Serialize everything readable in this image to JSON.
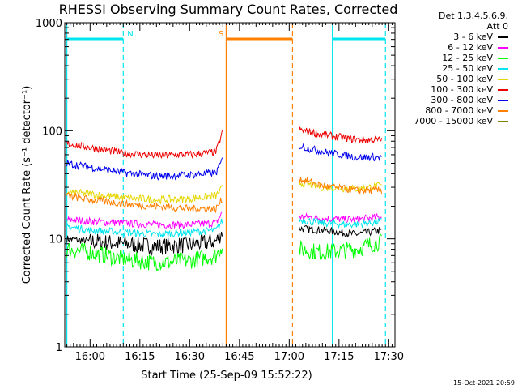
{
  "chart_data": {
    "type": "line",
    "title": "RHESSI Observing Summary Count Rates, Corrected",
    "xlabel": "Start Time (25-Sep-09 15:52:22)",
    "ylabel": "Corrected Count Rate (s⁻¹ detector⁻¹)",
    "y_scale": "log",
    "ylim": [
      1,
      1000
    ],
    "y_ticks": [
      "1",
      "10",
      "100",
      "1000"
    ],
    "x_ticks": [
      "16:00",
      "16:15",
      "16:30",
      "16:45",
      "17:00",
      "17:15",
      "17:30"
    ],
    "detectors_label": "Det 1,3,4,5,6,9,",
    "attenuator_label": "Att 0",
    "footer_date": "15-Oct-2021 20:59",
    "markers": [
      {
        "label": "N",
        "kind": "night",
        "start": "15:53",
        "end": "16:10",
        "color": "#00e5ee"
      },
      {
        "label": "S",
        "kind": "saa",
        "start": "16:41",
        "end": "17:01",
        "color": "#ff8000"
      },
      {
        "label": "",
        "kind": "night",
        "start": "17:13",
        "end": "17:29",
        "color": "#00e5ee"
      }
    ],
    "series": [
      {
        "name": "3 - 6 keV",
        "color": "#000000",
        "segments": [
          {
            "times": [
              "15:53",
              "16:00",
              "16:10",
              "16:20",
              "16:30",
              "16:38",
              "16:40"
            ],
            "values": [
              10,
              9.5,
              9,
              8.5,
              8.8,
              9.5,
              12
            ]
          },
          {
            "times": [
              "17:03",
              "17:10",
              "17:20",
              "17:28"
            ],
            "values": [
              12.5,
              12,
              11,
              12
            ]
          }
        ]
      },
      {
        "name": "6 - 12 keV",
        "color": "#ff00ff",
        "segments": [
          {
            "times": [
              "15:53",
              "16:00",
              "16:10",
              "16:20",
              "16:30",
              "16:38",
              "16:40"
            ],
            "values": [
              15,
              14.5,
              14,
              13.5,
              13.5,
              14,
              18
            ]
          },
          {
            "times": [
              "17:03",
              "17:10",
              "17:20",
              "17:28"
            ],
            "values": [
              16,
              15.5,
              15,
              16
            ]
          }
        ]
      },
      {
        "name": "12 - 25 keV",
        "color": "#00ff00",
        "segments": [
          {
            "times": [
              "15:53",
              "16:00",
              "16:10",
              "16:20",
              "16:30",
              "16:38",
              "16:40"
            ],
            "values": [
              8,
              7.5,
              6.5,
              6,
              6.3,
              7,
              9
            ]
          },
          {
            "times": [
              "17:03",
              "17:10",
              "17:20",
              "17:28"
            ],
            "values": [
              8,
              7.5,
              8,
              9.5
            ]
          }
        ]
      },
      {
        "name": "25 - 50 keV",
        "color": "#00e5ee",
        "segments": [
          {
            "times": [
              "15:53",
              "16:00",
              "16:10",
              "16:20",
              "16:30",
              "16:38",
              "16:40"
            ],
            "values": [
              13,
              12,
              11.5,
              11,
              11.5,
              12,
              15
            ]
          },
          {
            "times": [
              "17:03",
              "17:10",
              "17:20",
              "17:28"
            ],
            "values": [
              15,
              14,
              13.5,
              14.5
            ]
          }
        ]
      },
      {
        "name": "50 - 100 keV",
        "color": "#e6d600",
        "segments": [
          {
            "times": [
              "15:53",
              "16:00",
              "16:10",
              "16:20",
              "16:30",
              "16:38",
              "16:40"
            ],
            "values": [
              27,
              26,
              24,
              23,
              23.5,
              25,
              30
            ]
          },
          {
            "times": [
              "17:03",
              "17:10",
              "17:20",
              "17:28"
            ],
            "values": [
              33,
              30,
              29,
              31
            ]
          }
        ]
      },
      {
        "name": "100 - 300 keV",
        "color": "#ee0000",
        "segments": [
          {
            "times": [
              "15:53",
              "16:00",
              "16:10",
              "16:20",
              "16:30",
              "16:38",
              "16:40"
            ],
            "values": [
              76,
              70,
              62,
              59,
              60,
              64,
              100
            ]
          },
          {
            "times": [
              "17:03",
              "17:10",
              "17:20",
              "17:28"
            ],
            "values": [
              102,
              92,
              83,
              82
            ]
          }
        ]
      },
      {
        "name": "300 - 800 keV",
        "color": "#0000ee",
        "segments": [
          {
            "times": [
              "15:53",
              "16:00",
              "16:10",
              "16:20",
              "16:30",
              "16:38",
              "16:40"
            ],
            "values": [
              50,
              46,
              41,
              38,
              39,
              41,
              55
            ]
          },
          {
            "times": [
              "17:03",
              "17:10",
              "17:20",
              "17:28"
            ],
            "values": [
              72,
              64,
              57,
              57
            ]
          }
        ]
      },
      {
        "name": "800 - 7000 keV",
        "color": "#ff8000",
        "segments": [
          {
            "times": [
              "15:53",
              "16:00",
              "16:10",
              "16:20",
              "16:30",
              "16:38",
              "16:40"
            ],
            "values": [
              25,
              23,
              21,
              20,
              19,
              19,
              24
            ]
          },
          {
            "times": [
              "17:03",
              "17:10",
              "17:20",
              "17:28"
            ],
            "values": [
              36,
              31,
              28,
              28
            ]
          }
        ]
      },
      {
        "name": "7000 - 15000 keV",
        "color": "#808000",
        "segments": []
      }
    ]
  }
}
